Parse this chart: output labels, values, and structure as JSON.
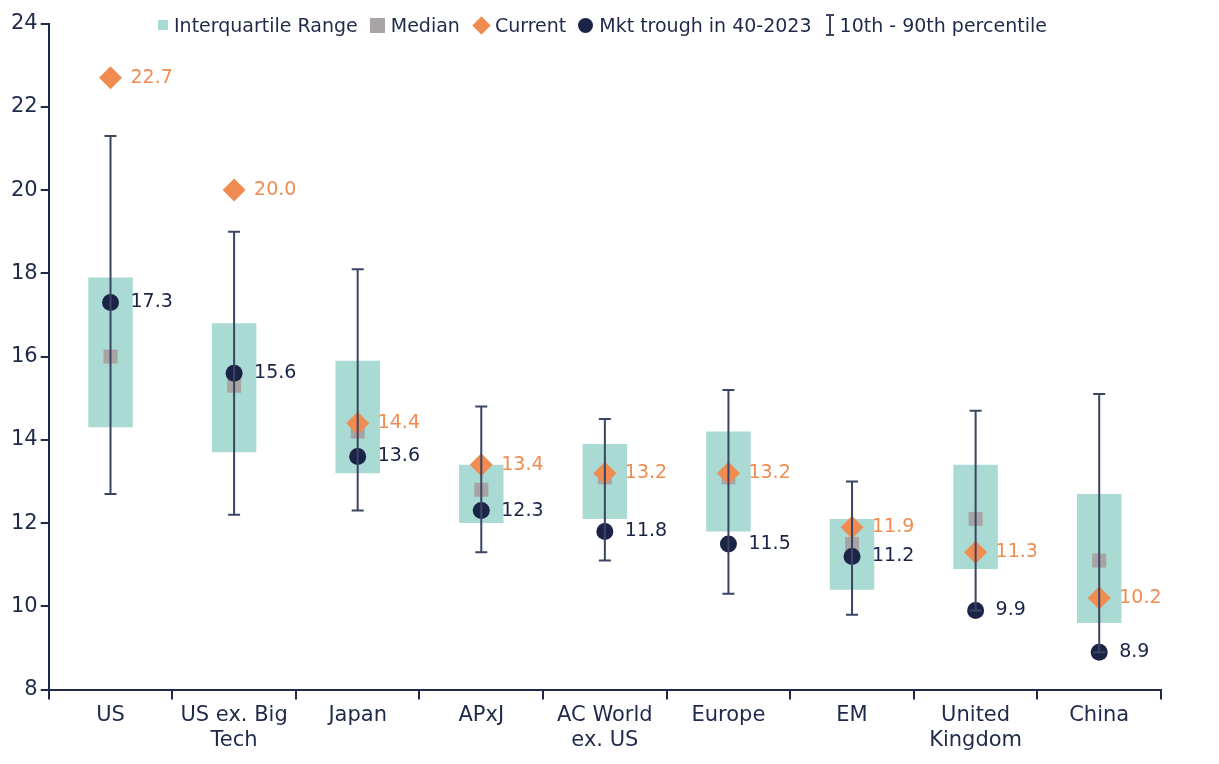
{
  "chart_data": {
    "type": "box",
    "categories": [
      "US",
      "US ex. Big Tech",
      "Japan",
      "APxJ",
      "AC World ex. US",
      "Europe",
      "EM",
      "United Kingdom",
      "China"
    ],
    "ylim": [
      8,
      24
    ],
    "yticks": [
      8,
      10,
      12,
      14,
      16,
      18,
      20,
      22,
      24
    ],
    "grid": false,
    "legend": "top",
    "annotations": [
      "Median",
      "10th - 90th percentile"
    ],
    "series": [
      {
        "name": "Interquartile Range",
        "type": "box",
        "color": "#a9dad3",
        "boxes": [
          {
            "low": 12.7,
            "q1": 14.3,
            "median": 16.0,
            "q3": 17.9,
            "high": 21.3
          },
          {
            "low": 12.2,
            "q1": 13.7,
            "median": 15.3,
            "q3": 16.8,
            "high": 19.0
          },
          {
            "low": 12.3,
            "q1": 13.2,
            "median": 14.2,
            "q3": 15.9,
            "high": 18.1
          },
          {
            "low": 11.3,
            "q1": 12.0,
            "median": 12.8,
            "q3": 13.4,
            "high": 14.8
          },
          {
            "low": 11.1,
            "q1": 12.1,
            "median": 13.1,
            "q3": 13.9,
            "high": 14.5
          },
          {
            "low": 10.3,
            "q1": 11.8,
            "median": 13.1,
            "q3": 14.2,
            "high": 15.2
          },
          {
            "low": 9.8,
            "q1": 10.4,
            "median": 11.5,
            "q3": 12.1,
            "high": 13.0
          },
          {
            "low": 9.9,
            "q1": 10.9,
            "median": 12.1,
            "q3": 13.4,
            "high": 14.7
          },
          {
            "low": 8.9,
            "q1": 9.6,
            "median": 11.1,
            "q3": 12.7,
            "high": 15.1
          }
        ]
      },
      {
        "name": "Current",
        "type": "scatter",
        "color": "#f08c52",
        "marker": "diamond",
        "values": [
          22.7,
          20.0,
          14.4,
          13.4,
          13.2,
          13.2,
          11.9,
          11.3,
          10.2
        ],
        "value_labels": [
          "22.7",
          "20.0",
          "14.4",
          "13.4",
          "13.2",
          "13.2",
          "11.9",
          "11.3",
          "10.2"
        ]
      },
      {
        "name": "Mkt trough in 40-2023",
        "type": "scatter",
        "color": "#1b2447",
        "marker": "circle",
        "values": [
          17.3,
          15.6,
          13.6,
          12.3,
          11.8,
          11.5,
          11.2,
          9.9,
          8.9
        ],
        "value_labels": [
          "17.3",
          "15.6",
          "13.6",
          "12.3",
          "11.8",
          "11.5",
          "11.2",
          "9.9",
          "8.9"
        ]
      }
    ]
  }
}
